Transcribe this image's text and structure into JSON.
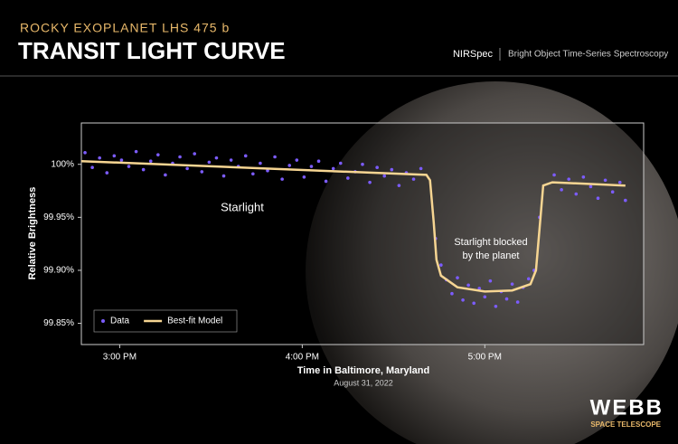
{
  "chart_data": {
    "type": "scatter",
    "kicker": "ROCKY EXOPLANET LHS 475 b",
    "title": "TRANSIT LIGHT CURVE",
    "instrument": "NIRSpec",
    "mode": "Bright Object Time-Series Spectroscopy",
    "xlabel": "Time in Baltimore, Maryland",
    "xsublabel": "August 31, 2022",
    "ylabel": "Relative Brightness",
    "annotations": [
      "Starlight",
      "Starlight blocked",
      "by the planet"
    ],
    "legend": "lower left",
    "xlim": [
      14.79,
      17.87
    ],
    "xticks": [
      {
        "value": 15,
        "label": "3:00 PM"
      },
      {
        "value": 16,
        "label": "4:00 PM"
      },
      {
        "value": 17,
        "label": "5:00 PM"
      }
    ],
    "ylim": [
      99.83,
      100.039
    ],
    "yticks": [
      {
        "value": 100,
        "label": "100%"
      },
      {
        "value": 99.95,
        "label": "99.95%"
      },
      {
        "value": 99.9,
        "label": "99.90%"
      },
      {
        "value": 99.85,
        "label": "99.85%"
      }
    ],
    "series": [
      {
        "name": "Data",
        "type": "scatter",
        "color": "#7c5cff",
        "x": [
          14.81,
          14.85,
          14.89,
          14.93,
          14.97,
          15.01,
          15.05,
          15.09,
          15.13,
          15.17,
          15.21,
          15.25,
          15.29,
          15.33,
          15.37,
          15.41,
          15.45,
          15.49,
          15.53,
          15.57,
          15.61,
          15.65,
          15.69,
          15.73,
          15.77,
          15.81,
          15.85,
          15.89,
          15.93,
          15.97,
          16.01,
          16.05,
          16.09,
          16.13,
          16.17,
          16.21,
          16.25,
          16.29,
          16.33,
          16.37,
          16.41,
          16.45,
          16.49,
          16.53,
          16.57,
          16.61,
          16.65,
          16.73,
          16.76,
          16.79,
          16.82,
          16.85,
          16.88,
          16.91,
          16.94,
          16.97,
          17.0,
          17.03,
          17.06,
          17.09,
          17.12,
          17.15,
          17.18,
          17.21,
          17.24,
          17.27,
          17.3,
          17.38,
          17.42,
          17.46,
          17.5,
          17.54,
          17.58,
          17.62,
          17.66,
          17.7,
          17.74,
          17.77
        ],
        "values": [
          100.011,
          99.997,
          100.006,
          99.992,
          100.008,
          100.004,
          99.998,
          100.012,
          99.995,
          100.003,
          100.009,
          99.99,
          100.001,
          100.007,
          99.996,
          100.01,
          99.993,
          100.002,
          100.006,
          99.989,
          100.004,
          99.998,
          100.008,
          99.991,
          100.001,
          99.994,
          100.007,
          99.986,
          99.999,
          100.004,
          99.988,
          99.998,
          100.003,
          99.984,
          99.996,
          100.001,
          99.987,
          99.993,
          100.0,
          99.983,
          99.997,
          99.989,
          99.995,
          99.98,
          99.992,
          99.986,
          99.996,
          99.93,
          99.905,
          99.891,
          99.878,
          99.893,
          99.872,
          99.886,
          99.869,
          99.883,
          99.875,
          99.89,
          99.866,
          99.88,
          99.873,
          99.887,
          99.87,
          99.884,
          99.892,
          99.9,
          99.95,
          99.99,
          99.976,
          99.986,
          99.972,
          99.988,
          99.979,
          99.968,
          99.985,
          99.974,
          99.983,
          99.966
        ]
      },
      {
        "name": "Best-fit Model",
        "type": "line",
        "color": "#f6d592",
        "x": [
          14.79,
          16.68,
          16.7,
          16.72,
          16.735,
          16.76,
          16.85,
          17.0,
          17.15,
          17.25,
          17.28,
          17.3,
          17.32,
          17.37,
          17.77
        ],
        "values": [
          100.003,
          99.99,
          99.985,
          99.945,
          99.91,
          99.895,
          99.884,
          99.88,
          99.881,
          99.887,
          99.9,
          99.94,
          99.98,
          99.983,
          99.98
        ]
      }
    ]
  },
  "branding": {
    "name": "WEBB",
    "sub": "SPACE TELESCOPE"
  }
}
